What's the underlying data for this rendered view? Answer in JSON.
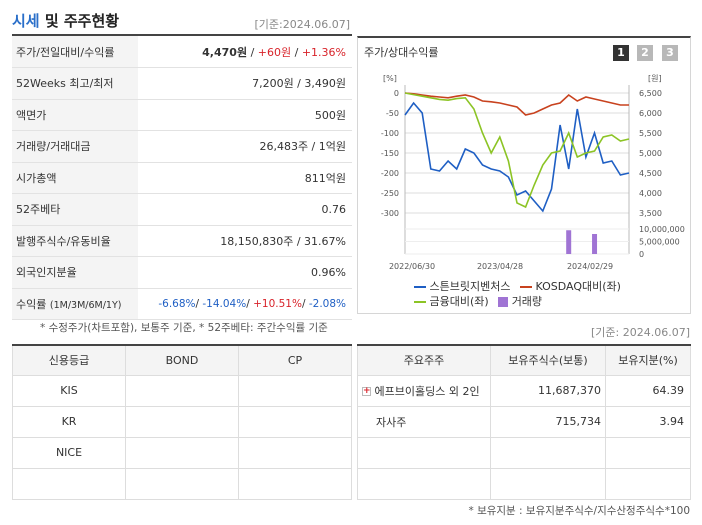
{
  "header": {
    "title_part1": "시세",
    "title_part2": " 및 주주현황",
    "as_of": "[기준:2024.06.07]"
  },
  "info_rows": [
    {
      "label": "주가/전일대비/수익률",
      "v1": "4,470원",
      "sep1": " / ",
      "v2": "+60원",
      "sep2": " / ",
      "v3": "+1.36%"
    },
    {
      "label": "52Weeks 최고/최저",
      "value": "7,200원 / 3,490원"
    },
    {
      "label": "액면가",
      "value": "500원"
    },
    {
      "label": "거래량/거래대금",
      "value": "26,483주 / 1억원"
    },
    {
      "label": "시가총액",
      "value": "811억원"
    },
    {
      "label": "52주베타",
      "value": "0.76"
    },
    {
      "label": "발행주식수/유동비율",
      "value": "18,150,830주 / 31.67%"
    },
    {
      "label": "외국인지분율",
      "value": "0.96%"
    },
    {
      "label": "수익률",
      "label_sub": "(1M/3M/6M/1Y)",
      "r1": "-6.68%",
      "r2": "-14.04%",
      "r3": "+10.51%",
      "r4": "-2.08%"
    }
  ],
  "info_note": "* 수정주가(차트포함), 보통주 기준, * 52주베타: 주간수익률 기준",
  "chart_panel": {
    "title": "주가/상대수익률",
    "pages": [
      "1",
      "2",
      "3"
    ]
  },
  "chart_data": {
    "type": "line",
    "left_axis_unit": "[%]",
    "right_axis_unit": "[원]",
    "left_ticks": [
      "0",
      "-50",
      "-100",
      "-150",
      "-200",
      "-250",
      "-300"
    ],
    "right_ticks": [
      "6,500",
      "6,000",
      "5,500",
      "5,000",
      "4,500",
      "4,000",
      "3,500"
    ],
    "volume_ticks": [
      "10,000,000",
      "5,000,000",
      "0"
    ],
    "x_labels": [
      "2022/06/30",
      "2023/04/28",
      "2024/02/29"
    ],
    "left_range": [
      -300,
      0
    ],
    "volume_range": [
      0,
      10000000
    ],
    "series": [
      {
        "name": "스튼브릿지벤처스",
        "color": "#1f5fc4",
        "values": [
          -55,
          -25,
          -50,
          -190,
          -195,
          -170,
          -190,
          -140,
          -150,
          -180,
          -190,
          -195,
          -210,
          -255,
          -245,
          -270,
          -295,
          -240,
          -80,
          -190,
          -40,
          -160,
          -100,
          -175,
          -170,
          -205,
          -200
        ]
      },
      {
        "name": "KOSDAQ대비(좌)",
        "color": "#c8421e",
        "values": [
          0,
          -2,
          -5,
          -8,
          -10,
          -12,
          -8,
          -5,
          -10,
          -20,
          -22,
          -25,
          -30,
          -35,
          -55,
          -50,
          -40,
          -30,
          -25,
          -5,
          -20,
          -10,
          -15,
          -20,
          -25,
          -30,
          -30
        ]
      },
      {
        "name": "금융대비(좌)",
        "color": "#8cc425",
        "values": [
          0,
          -4,
          -8,
          -12,
          -16,
          -18,
          -14,
          -12,
          -40,
          -100,
          -150,
          -110,
          -170,
          -275,
          -285,
          -230,
          -180,
          -150,
          -145,
          -100,
          -160,
          -150,
          -145,
          -110,
          -105,
          -120,
          -115
        ]
      }
    ],
    "volume_label": "거래량",
    "volume_color": "#a074d4",
    "volume_bars": [
      {
        "index": 19,
        "value": 9500000
      },
      {
        "index": 22,
        "value": 8000000
      }
    ]
  },
  "credit": {
    "headers": [
      "신용등급",
      "BOND",
      "CP"
    ],
    "rows": [
      [
        "KIS",
        "",
        ""
      ],
      [
        "KR",
        "",
        ""
      ],
      [
        "NICE",
        "",
        ""
      ],
      [
        "",
        "",
        ""
      ]
    ]
  },
  "holders": {
    "as_of": "[기준: 2024.06.07]",
    "headers": [
      "주요주주",
      "보유주식수(보통)",
      "보유지분(%)"
    ],
    "rows": [
      {
        "name": "에프브이홀딩스 외 2인",
        "shares": "11,687,370",
        "pct": "64.39",
        "expand": true
      },
      {
        "name": "자사주",
        "shares": "715,734",
        "pct": "3.94",
        "expand": false
      },
      {
        "name": "",
        "shares": "",
        "pct": ""
      },
      {
        "name": "",
        "shares": "",
        "pct": ""
      }
    ],
    "note": "* 보유지분 : 보유지분주식수/지수산정주식수*100"
  }
}
